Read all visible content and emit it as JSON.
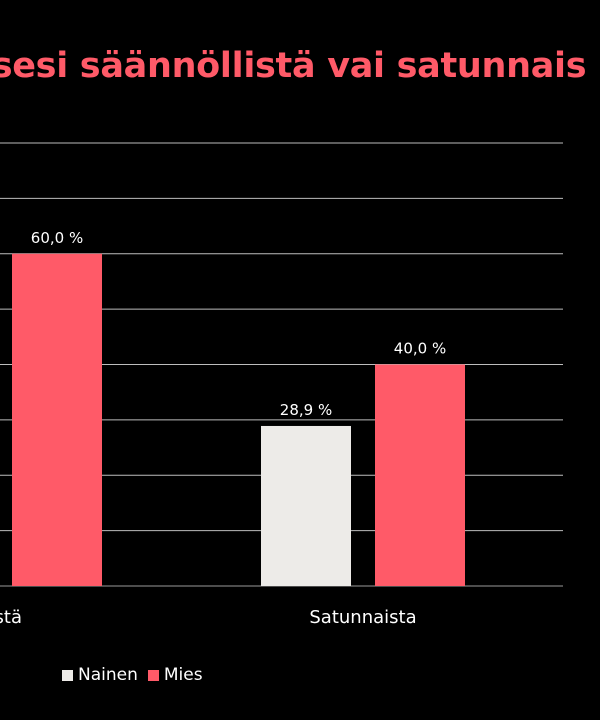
{
  "chart_data": {
    "type": "bar",
    "title": "isesi säännöllistä vai satunnais",
    "categories": [
      "stä",
      "Satunnaista"
    ],
    "ylim": [
      0,
      80
    ],
    "grid": true,
    "legend_position": "bottom-left",
    "series": [
      {
        "name": "Nainen",
        "color": "#edebe8",
        "values": [
          null,
          28.9
        ],
        "labels": [
          "",
          "28,9 %"
        ]
      },
      {
        "name": "Mies",
        "color": "#ff5a68",
        "values": [
          60.0,
          40.0
        ],
        "labels": [
          "60,0 %",
          "40,0 %"
        ]
      }
    ]
  }
}
